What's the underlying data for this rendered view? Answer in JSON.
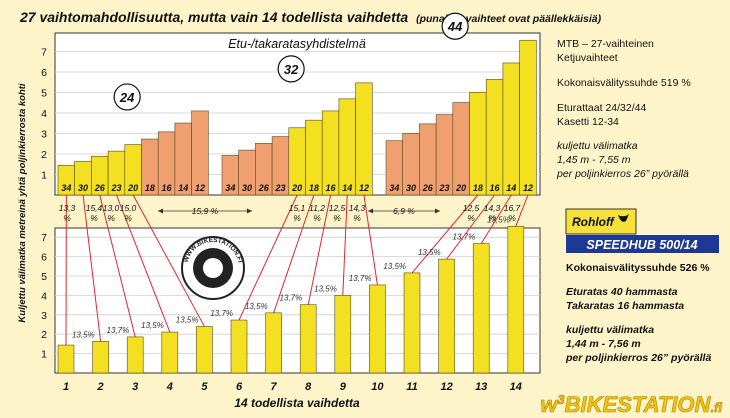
{
  "title": {
    "main": "27 vaihtomahdollisuutta, mutta vain 14 todellista vaihdetta",
    "note": "(punaiset vaihteet ovat päällekkäisiä)"
  },
  "colors": {
    "background": "#fdf5c9",
    "unique_gear": "#f2e021",
    "overlap_gear": "#f0a070",
    "ratio_line": "#e8242c",
    "bar_stroke": "#5a4a1a"
  },
  "chart_data": [
    {
      "type": "bar",
      "title": "Etu-/takaratasyhdistelmä",
      "ylabel": "Kuljettu välimatka metreinä yhtä poljinkierrosta kohti",
      "ylim": [
        0,
        8
      ],
      "yticks": [
        1,
        2,
        3,
        4,
        5,
        6,
        7
      ],
      "groups": [
        {
          "chainring": "24",
          "cogs": [
            "34",
            "30",
            "26",
            "23",
            "20",
            "18",
            "16",
            "14",
            "12"
          ],
          "values": [
            1.45,
            1.64,
            1.89,
            2.14,
            2.46,
            2.73,
            3.08,
            3.51,
            4.1
          ],
          "unique": [
            true,
            true,
            true,
            true,
            true,
            false,
            false,
            false,
            false
          ]
        },
        {
          "chainring": "32",
          "cogs": [
            "34",
            "30",
            "26",
            "23",
            "20",
            "18",
            "16",
            "14",
            "12"
          ],
          "values": [
            1.93,
            2.19,
            2.52,
            2.85,
            3.28,
            3.65,
            4.1,
            4.69,
            5.47
          ],
          "unique": [
            false,
            false,
            false,
            false,
            true,
            true,
            true,
            true,
            true
          ]
        },
        {
          "chainring": "44",
          "cogs": [
            "34",
            "30",
            "26",
            "23",
            "20",
            "18",
            "16",
            "14",
            "12"
          ],
          "values": [
            2.65,
            3.01,
            3.47,
            3.92,
            4.51,
            5.01,
            5.64,
            6.44,
            7.55
          ],
          "unique": [
            false,
            false,
            false,
            false,
            false,
            true,
            true,
            true,
            true
          ]
        }
      ],
      "step_labels": [
        "13,3 %",
        "15,4 %",
        "13,0 %",
        "15,0 %",
        "15,9 %",
        "15,1 %",
        "11,2 %",
        "12,5 %",
        "14,3 %",
        "6,9 %",
        "12,5 %",
        "14,3 %",
        "16,7 %"
      ]
    },
    {
      "type": "bar",
      "xlabel": "14 todellista vaihdetta",
      "ylim": [
        0,
        8
      ],
      "yticks": [
        1,
        2,
        3,
        4,
        5,
        6,
        7
      ],
      "categories": [
        "1",
        "2",
        "3",
        "4",
        "5",
        "6",
        "7",
        "8",
        "9",
        "10",
        "11",
        "12",
        "13",
        "14"
      ],
      "values": [
        1.44,
        1.63,
        1.86,
        2.11,
        2.4,
        2.73,
        3.1,
        3.52,
        4.0,
        4.54,
        5.16,
        5.87,
        6.67,
        7.56
      ],
      "step_labels": [
        "13,5%",
        "13,7%",
        "13,5%",
        "13,5%",
        "13,7%",
        "13,5%",
        "13,7%",
        "13,5%",
        "13,7%",
        "13,5%",
        "13,5%",
        "13,7%",
        "13,5%"
      ]
    }
  ],
  "top_info": {
    "line1": "MTB – 27-vaihteinen",
    "line2": "Ketjuvaihteet",
    "ratio": "Kokonaisvälityssuhde 519 %",
    "chainrings": "Eturattaat 24/32/44",
    "cassette": "Kasetti 12-34",
    "dist1": "kuljettu välimatka",
    "dist2": "1,45 m - 7,55 m",
    "dist3": "per poljinkierros 26” pyörällä"
  },
  "bottom_info": {
    "brand": "Rohloff",
    "product": "SPEEDHUB 500/14",
    "ratio": "Kokonaisvälityssuhde 526 %",
    "front": "Eturatas 40 hammasta",
    "rear": "Takaratas 16 hammasta",
    "dist1": "kuljettu välimatka",
    "dist2": "1,44 m - 7,56 m",
    "dist3": "per poljinkierros 26” pyörällä"
  },
  "stamp": {
    "text": "WWW.BIKESTATION.FI"
  },
  "watermark": {
    "w": "w",
    "sup": "3",
    "name": "BIKESTATION",
    "tld": ".fi"
  }
}
